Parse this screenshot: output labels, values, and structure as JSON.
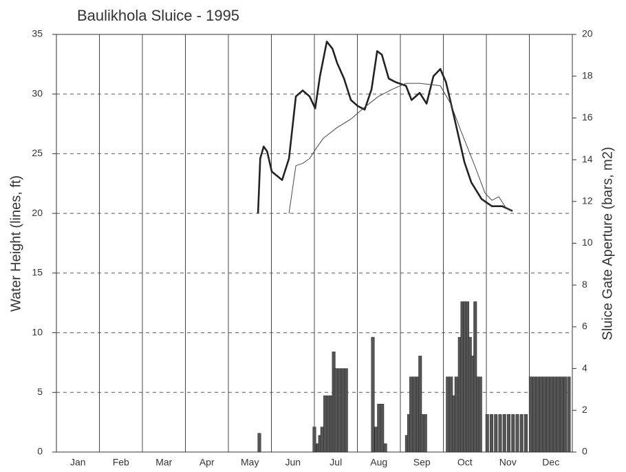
{
  "chart_data": {
    "type": "combo",
    "title": "Baulikhola Sluice - 1995",
    "y_label": "Water Height (lines, ft)",
    "y2_label": "Sluice Gate Aperture (bars, m2)",
    "xlim": [
      0,
      12
    ],
    "xticks": [
      {
        "value": 0.5,
        "label": "Jan"
      },
      {
        "value": 1.5,
        "label": "Feb"
      },
      {
        "value": 2.5,
        "label": "Mar"
      },
      {
        "value": 3.5,
        "label": "Apr"
      },
      {
        "value": 4.5,
        "label": "May"
      },
      {
        "value": 5.5,
        "label": "Jun"
      },
      {
        "value": 6.5,
        "label": "Jul"
      },
      {
        "value": 7.5,
        "label": "Aug"
      },
      {
        "value": 8.5,
        "label": "Sep"
      },
      {
        "value": 9.5,
        "label": "Oct"
      },
      {
        "value": 10.5,
        "label": "Nov"
      },
      {
        "value": 11.5,
        "label": "Dec"
      }
    ],
    "ylim": [
      0,
      35
    ],
    "yticks": [
      0,
      5,
      10,
      15,
      20,
      25,
      30,
      35
    ],
    "y2lim": [
      0,
      20
    ],
    "y2ticks": [
      0,
      2,
      4,
      6,
      8,
      10,
      12,
      14,
      16,
      18,
      20
    ],
    "grid": true,
    "series": [
      {
        "type": "line",
        "color": "#222222",
        "width": 2.6,
        "x": [
          4.69,
          4.74,
          4.82,
          4.9,
          5.01,
          5.25,
          5.41,
          5.57,
          5.73,
          5.89,
          6.02,
          6.13,
          6.29,
          6.42,
          6.53,
          6.69,
          6.85,
          7.01,
          7.17,
          7.33,
          7.46,
          7.57,
          7.73,
          7.89,
          8.13,
          8.26,
          8.45,
          8.61,
          8.77,
          8.93,
          9.06,
          9.25,
          9.49,
          9.65,
          9.89,
          10.13,
          10.37,
          10.61
        ],
        "values": [
          20.0,
          24.6,
          25.6,
          25.2,
          23.5,
          22.8,
          24.6,
          29.8,
          30.3,
          29.8,
          28.8,
          31.5,
          34.4,
          33.8,
          32.6,
          31.3,
          29.5,
          29.0,
          28.7,
          30.4,
          33.6,
          33.3,
          31.3,
          31.0,
          30.7,
          29.5,
          30.1,
          29.2,
          31.5,
          32.1,
          31.0,
          28.1,
          24.3,
          22.6,
          21.2,
          20.6,
          20.6,
          20.2
        ]
      },
      {
        "type": "line",
        "color": "#444444",
        "width": 1,
        "x": [
          5.41,
          5.57,
          5.73,
          5.89,
          6.05,
          6.21,
          6.53,
          6.85,
          7.17,
          7.49,
          7.81,
          8.13,
          8.45,
          8.93,
          9.17,
          9.41,
          9.73,
          9.97,
          10.13,
          10.29,
          10.45,
          10.61
        ],
        "values": [
          20.0,
          24.0,
          24.2,
          24.6,
          25.5,
          26.3,
          27.2,
          27.9,
          28.9,
          29.8,
          30.4,
          30.9,
          30.9,
          30.7,
          29.2,
          26.9,
          24.0,
          21.7,
          21.1,
          21.4,
          20.5,
          20.2
        ]
      },
      {
        "type": "bar",
        "axis": "y2",
        "color": "#555555",
        "x": [
          4.72,
          6.0,
          6.08,
          6.13,
          6.18,
          6.25,
          6.33,
          6.4,
          6.45,
          6.5,
          6.58,
          6.66,
          6.74,
          7.36,
          7.44,
          7.5,
          7.58,
          7.65,
          8.15,
          8.2,
          8.25,
          8.33,
          8.41,
          8.46,
          8.5,
          8.58,
          9.1,
          9.18,
          9.24,
          9.3,
          9.38,
          9.44,
          9.5,
          9.56,
          9.62,
          9.68,
          9.74,
          9.8,
          9.86,
          10.02,
          10.12,
          10.22,
          10.32,
          10.42,
          10.52,
          10.62,
          10.72,
          10.82,
          10.92,
          11.03,
          11.11,
          11.19,
          11.27,
          11.35,
          11.43,
          11.51,
          11.59,
          11.67,
          11.75,
          11.83,
          11.92
        ],
        "values": [
          0.9,
          1.2,
          0.4,
          0.8,
          1.2,
          2.7,
          2.7,
          2.7,
          4.8,
          4.0,
          4.0,
          4.0,
          4.0,
          5.5,
          1.2,
          2.3,
          2.3,
          0.4,
          0.8,
          1.8,
          3.6,
          3.6,
          3.6,
          4.6,
          1.8,
          1.8,
          3.6,
          3.6,
          2.7,
          3.6,
          5.5,
          7.2,
          7.2,
          7.2,
          5.5,
          4.6,
          7.2,
          3.6,
          3.6,
          1.8,
          1.8,
          1.8,
          1.8,
          1.8,
          1.8,
          1.8,
          1.8,
          1.8,
          1.8,
          3.6,
          3.6,
          3.6,
          3.6,
          3.6,
          3.6,
          3.6,
          3.6,
          3.6,
          3.6,
          3.6,
          3.6
        ]
      }
    ]
  }
}
